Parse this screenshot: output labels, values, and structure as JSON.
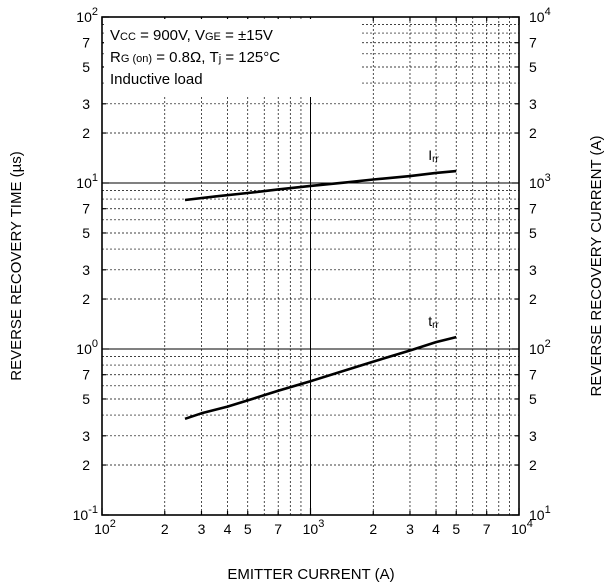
{
  "chart_data": {
    "type": "line",
    "title": "",
    "xlabel": "EMITTER CURRENT (A)",
    "ylabel_left": "REVERSE RECOVERY TIME (µs)",
    "ylabel_right": "REVERSE RECOVERY CURRENT (A)",
    "x_scale": "log",
    "y_scale": "log",
    "xlim": [
      100,
      10000
    ],
    "ylim_left": [
      0.1,
      100
    ],
    "ylim_right": [
      10,
      10000
    ],
    "grid": true,
    "x_ticks": [
      {
        "value": 100,
        "base": "10",
        "exp": "2"
      },
      {
        "value": 200,
        "label": "2"
      },
      {
        "value": 300,
        "label": "3"
      },
      {
        "value": 400,
        "label": "4"
      },
      {
        "value": 500,
        "label": "5"
      },
      {
        "value": 700,
        "label": "7"
      },
      {
        "value": 1000,
        "base": "10",
        "exp": "3"
      },
      {
        "value": 2000,
        "label": "2"
      },
      {
        "value": 3000,
        "label": "3"
      },
      {
        "value": 4000,
        "label": "4"
      },
      {
        "value": 5000,
        "label": "5"
      },
      {
        "value": 7000,
        "label": "7"
      },
      {
        "value": 10000,
        "base": "10",
        "exp": "4"
      }
    ],
    "y_ticks_left": [
      {
        "value": 0.1,
        "base": "10",
        "exp": "-1"
      },
      {
        "value": 0.2,
        "label": "2"
      },
      {
        "value": 0.3,
        "label": "3"
      },
      {
        "value": 0.5,
        "label": "5"
      },
      {
        "value": 0.7,
        "label": "7"
      },
      {
        "value": 1,
        "base": "10",
        "exp": "0"
      },
      {
        "value": 2,
        "label": "2"
      },
      {
        "value": 3,
        "label": "3"
      },
      {
        "value": 5,
        "label": "5"
      },
      {
        "value": 7,
        "label": "7"
      },
      {
        "value": 10,
        "base": "10",
        "exp": "1"
      },
      {
        "value": 20,
        "label": "2"
      },
      {
        "value": 30,
        "label": "3"
      },
      {
        "value": 50,
        "label": "5"
      },
      {
        "value": 70,
        "label": "7"
      },
      {
        "value": 100,
        "base": "10",
        "exp": "2"
      }
    ],
    "y_ticks_right": [
      {
        "value": 10,
        "base": "10",
        "exp": "1"
      },
      {
        "value": 20,
        "label": "2"
      },
      {
        "value": 30,
        "label": "3"
      },
      {
        "value": 50,
        "label": "5"
      },
      {
        "value": 70,
        "label": "7"
      },
      {
        "value": 100,
        "base": "10",
        "exp": "2"
      },
      {
        "value": 200,
        "label": "2"
      },
      {
        "value": 300,
        "label": "3"
      },
      {
        "value": 500,
        "label": "5"
      },
      {
        "value": 700,
        "label": "7"
      },
      {
        "value": 1000,
        "base": "10",
        "exp": "3"
      },
      {
        "value": 2000,
        "label": "2"
      },
      {
        "value": 3000,
        "label": "3"
      },
      {
        "value": 5000,
        "label": "5"
      },
      {
        "value": 7000,
        "label": "7"
      },
      {
        "value": 10000,
        "base": "10",
        "exp": "4"
      }
    ],
    "annotations": [
      {
        "parts": [
          [
            "V",
            false
          ],
          [
            "CC",
            true
          ],
          [
            " = 900V, V",
            false
          ],
          [
            "GE",
            true
          ],
          [
            " = ±15V",
            false
          ]
        ]
      },
      {
        "parts": [
          [
            "R",
            false
          ],
          [
            "G (on)",
            true
          ],
          [
            " = 0.8Ω, T",
            false
          ],
          [
            "j",
            true
          ],
          [
            " = 125°C",
            false
          ]
        ]
      },
      {
        "parts": [
          [
            "Inductive load",
            false
          ]
        ]
      }
    ],
    "series": [
      {
        "base": "I",
        "sub": "rr",
        "axis": "right",
        "x": [
          250,
          350,
          500,
          700,
          1000,
          1500,
          2000,
          3000,
          4000,
          5000
        ],
        "y": [
          790,
          830,
          870,
          915,
          960,
          1010,
          1050,
          1100,
          1150,
          1180
        ]
      },
      {
        "base": "t",
        "sub": "rr",
        "axis": "left",
        "x": [
          250,
          300,
          400,
          500,
          700,
          1000,
          1500,
          2000,
          3000,
          4000,
          5000
        ],
        "y": [
          0.38,
          0.41,
          0.45,
          0.49,
          0.56,
          0.64,
          0.75,
          0.84,
          0.98,
          1.1,
          1.18
        ]
      }
    ]
  }
}
